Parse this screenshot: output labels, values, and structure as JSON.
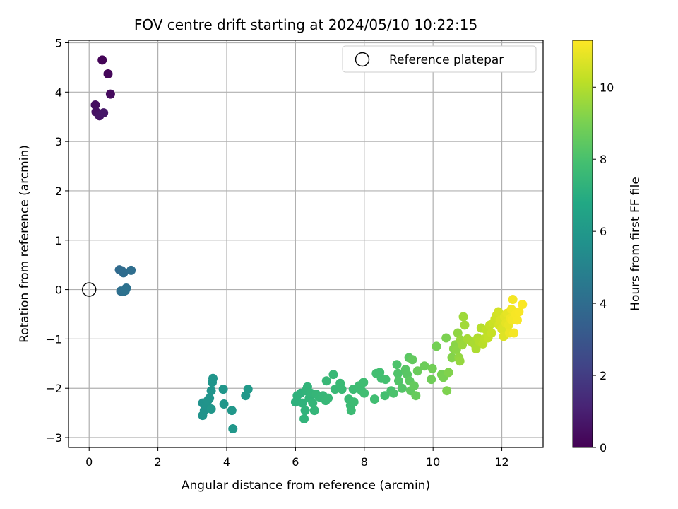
{
  "chart_data": {
    "type": "scatter",
    "title": "FOV centre drift starting at 2024/05/10 10:22:15",
    "xlabel": "Angular distance from reference (arcmin)",
    "ylabel": "Rotation from reference (arcmin)",
    "xlim": [
      -0.6,
      13.2
    ],
    "ylim": [
      -3.2,
      5.05
    ],
    "xticks": [
      0,
      2,
      4,
      6,
      8,
      10,
      12
    ],
    "yticks": [
      -3,
      -2,
      -1,
      0,
      1,
      2,
      3,
      4,
      5
    ],
    "xtick_labels": [
      "0",
      "2",
      "4",
      "6",
      "8",
      "10",
      "12"
    ],
    "ytick_labels": [
      "−3",
      "−2",
      "−1",
      "0",
      "1",
      "2",
      "3",
      "4",
      "5"
    ],
    "grid": true,
    "legend": {
      "position": "top-right",
      "entries": [
        "Reference platepar"
      ]
    },
    "reference_point": {
      "x": 0,
      "y": 0,
      "marker": "open-circle"
    },
    "colorbar": {
      "label": "Hours from first FF file",
      "colormap": "viridis",
      "range": [
        0,
        11.3
      ],
      "ticks": [
        0,
        2,
        4,
        6,
        8,
        10
      ],
      "tick_labels": [
        "0",
        "2",
        "4",
        "6",
        "8",
        "10"
      ]
    },
    "series": [
      {
        "points": [
          {
            "x": 0.38,
            "y": 4.65,
            "c": 0.1
          },
          {
            "x": 0.55,
            "y": 4.37,
            "c": 0.2
          },
          {
            "x": 0.62,
            "y": 3.96,
            "c": 0.3
          },
          {
            "x": 0.18,
            "y": 3.74,
            "c": 0.4
          },
          {
            "x": 0.2,
            "y": 3.6,
            "c": 0.5
          },
          {
            "x": 0.3,
            "y": 3.52,
            "c": 0.6
          },
          {
            "x": 0.42,
            "y": 3.58,
            "c": 0.7
          },
          {
            "x": 0.88,
            "y": 0.4,
            "c": 3.9
          },
          {
            "x": 0.95,
            "y": 0.38,
            "c": 3.95
          },
          {
            "x": 1.0,
            "y": 0.34,
            "c": 4.0
          },
          {
            "x": 1.22,
            "y": 0.39,
            "c": 4.05
          },
          {
            "x": 0.92,
            "y": -0.03,
            "c": 4.1
          },
          {
            "x": 1.0,
            "y": -0.04,
            "c": 4.15
          },
          {
            "x": 1.08,
            "y": 0.03,
            "c": 4.2
          },
          {
            "x": 1.05,
            "y": -0.02,
            "c": 4.25
          },
          {
            "x": 3.3,
            "y": -2.3,
            "c": 5.7
          },
          {
            "x": 3.35,
            "y": -2.45,
            "c": 5.72
          },
          {
            "x": 3.3,
            "y": -2.55,
            "c": 5.74
          },
          {
            "x": 3.4,
            "y": -2.35,
            "c": 5.76
          },
          {
            "x": 3.45,
            "y": -2.25,
            "c": 5.78
          },
          {
            "x": 3.5,
            "y": -2.2,
            "c": 5.8
          },
          {
            "x": 3.55,
            "y": -2.05,
            "c": 5.82
          },
          {
            "x": 3.58,
            "y": -1.88,
            "c": 5.84
          },
          {
            "x": 3.6,
            "y": -1.8,
            "c": 5.86
          },
          {
            "x": 3.55,
            "y": -2.42,
            "c": 5.88
          },
          {
            "x": 3.9,
            "y": -2.02,
            "c": 5.9
          },
          {
            "x": 3.92,
            "y": -2.32,
            "c": 5.92
          },
          {
            "x": 4.15,
            "y": -2.45,
            "c": 5.94
          },
          {
            "x": 4.18,
            "y": -2.82,
            "c": 5.96
          },
          {
            "x": 4.55,
            "y": -2.15,
            "c": 6.0
          },
          {
            "x": 4.62,
            "y": -2.02,
            "c": 6.05
          },
          {
            "x": 6.0,
            "y": -2.28,
            "c": 7.2
          },
          {
            "x": 6.05,
            "y": -2.15,
            "c": 7.22
          },
          {
            "x": 6.15,
            "y": -2.1,
            "c": 7.24
          },
          {
            "x": 6.2,
            "y": -2.3,
            "c": 7.26
          },
          {
            "x": 6.28,
            "y": -2.45,
            "c": 7.28
          },
          {
            "x": 6.25,
            "y": -2.62,
            "c": 7.3
          },
          {
            "x": 6.3,
            "y": -2.05,
            "c": 7.32
          },
          {
            "x": 6.35,
            "y": -1.97,
            "c": 7.34
          },
          {
            "x": 6.4,
            "y": -2.2,
            "c": 7.36
          },
          {
            "x": 6.45,
            "y": -2.1,
            "c": 7.38
          },
          {
            "x": 6.5,
            "y": -2.3,
            "c": 7.4
          },
          {
            "x": 6.55,
            "y": -2.45,
            "c": 7.42
          },
          {
            "x": 6.6,
            "y": -2.12,
            "c": 7.44
          },
          {
            "x": 6.7,
            "y": -2.18,
            "c": 7.46
          },
          {
            "x": 6.8,
            "y": -2.15,
            "c": 7.48
          },
          {
            "x": 6.88,
            "y": -2.25,
            "c": 7.5
          },
          {
            "x": 6.95,
            "y": -2.2,
            "c": 7.52
          },
          {
            "x": 6.9,
            "y": -1.85,
            "c": 7.54
          },
          {
            "x": 7.1,
            "y": -1.72,
            "c": 7.56
          },
          {
            "x": 7.15,
            "y": -2.02,
            "c": 7.58
          },
          {
            "x": 7.3,
            "y": -1.9,
            "c": 7.6
          },
          {
            "x": 7.35,
            "y": -2.02,
            "c": 7.62
          },
          {
            "x": 7.55,
            "y": -2.22,
            "c": 7.64
          },
          {
            "x": 7.6,
            "y": -2.35,
            "c": 7.66
          },
          {
            "x": 7.62,
            "y": -2.45,
            "c": 7.68
          },
          {
            "x": 7.68,
            "y": -2.02,
            "c": 7.7
          },
          {
            "x": 7.7,
            "y": -2.28,
            "c": 7.72
          },
          {
            "x": 7.85,
            "y": -1.95,
            "c": 7.74
          },
          {
            "x": 7.92,
            "y": -2.05,
            "c": 7.76
          },
          {
            "x": 7.98,
            "y": -1.88,
            "c": 7.78
          },
          {
            "x": 8.0,
            "y": -2.1,
            "c": 7.8
          },
          {
            "x": 8.3,
            "y": -2.22,
            "c": 7.82
          },
          {
            "x": 8.35,
            "y": -1.7,
            "c": 7.84
          },
          {
            "x": 8.45,
            "y": -1.68,
            "c": 7.86
          },
          {
            "x": 8.5,
            "y": -1.8,
            "c": 7.88
          },
          {
            "x": 8.6,
            "y": -2.15,
            "c": 7.9
          },
          {
            "x": 8.62,
            "y": -1.82,
            "c": 7.92
          },
          {
            "x": 8.78,
            "y": -2.05,
            "c": 8.0
          },
          {
            "x": 8.85,
            "y": -2.1,
            "c": 8.05
          },
          {
            "x": 8.95,
            "y": -1.52,
            "c": 8.1
          },
          {
            "x": 8.98,
            "y": -1.7,
            "c": 8.15
          },
          {
            "x": 9.0,
            "y": -1.85,
            "c": 8.2
          },
          {
            "x": 9.1,
            "y": -2.0,
            "c": 8.25
          },
          {
            "x": 9.2,
            "y": -1.62,
            "c": 8.3
          },
          {
            "x": 9.25,
            "y": -1.72,
            "c": 8.35
          },
          {
            "x": 9.3,
            "y": -1.38,
            "c": 8.4
          },
          {
            "x": 9.32,
            "y": -1.85,
            "c": 8.45
          },
          {
            "x": 9.35,
            "y": -2.05,
            "c": 8.5
          },
          {
            "x": 9.4,
            "y": -1.42,
            "c": 8.55
          },
          {
            "x": 9.45,
            "y": -1.95,
            "c": 8.6
          },
          {
            "x": 9.5,
            "y": -2.15,
            "c": 8.65
          },
          {
            "x": 9.55,
            "y": -1.65,
            "c": 8.7
          },
          {
            "x": 9.75,
            "y": -1.55,
            "c": 8.75
          },
          {
            "x": 9.95,
            "y": -1.82,
            "c": 8.8
          },
          {
            "x": 9.98,
            "y": -1.6,
            "c": 8.85
          },
          {
            "x": 10.1,
            "y": -1.15,
            "c": 8.9
          },
          {
            "x": 10.25,
            "y": -1.72,
            "c": 8.95
          },
          {
            "x": 10.3,
            "y": -1.78,
            "c": 9.0
          },
          {
            "x": 10.38,
            "y": -0.98,
            "c": 9.05
          },
          {
            "x": 10.4,
            "y": -2.05,
            "c": 9.1
          },
          {
            "x": 10.45,
            "y": -1.68,
            "c": 9.15
          },
          {
            "x": 10.55,
            "y": -1.38,
            "c": 9.2
          },
          {
            "x": 10.6,
            "y": -1.2,
            "c": 9.25
          },
          {
            "x": 10.65,
            "y": -1.12,
            "c": 9.3
          },
          {
            "x": 10.68,
            "y": -1.22,
            "c": 9.35
          },
          {
            "x": 10.72,
            "y": -0.88,
            "c": 9.4
          },
          {
            "x": 10.75,
            "y": -1.38,
            "c": 9.45
          },
          {
            "x": 10.78,
            "y": -1.45,
            "c": 9.5
          },
          {
            "x": 10.8,
            "y": -1.02,
            "c": 9.55
          },
          {
            "x": 10.85,
            "y": -1.12,
            "c": 9.6
          },
          {
            "x": 10.88,
            "y": -0.55,
            "c": 9.65
          },
          {
            "x": 10.92,
            "y": -0.72,
            "c": 9.7
          },
          {
            "x": 11.0,
            "y": -1.0,
            "c": 9.75
          },
          {
            "x": 11.1,
            "y": -1.05,
            "c": 9.8
          },
          {
            "x": 11.2,
            "y": -1.1,
            "c": 9.85
          },
          {
            "x": 11.25,
            "y": -1.2,
            "c": 9.9
          },
          {
            "x": 11.3,
            "y": -0.98,
            "c": 9.95
          },
          {
            "x": 11.35,
            "y": -1.05,
            "c": 10.0
          },
          {
            "x": 11.4,
            "y": -0.78,
            "c": 10.05
          },
          {
            "x": 11.45,
            "y": -1.1,
            "c": 10.1
          },
          {
            "x": 11.5,
            "y": -1.0,
            "c": 10.15
          },
          {
            "x": 11.55,
            "y": -0.82,
            "c": 10.2
          },
          {
            "x": 11.6,
            "y": -0.98,
            "c": 10.25
          },
          {
            "x": 11.65,
            "y": -0.72,
            "c": 10.3
          },
          {
            "x": 11.7,
            "y": -0.88,
            "c": 10.35
          },
          {
            "x": 11.75,
            "y": -0.68,
            "c": 10.4
          },
          {
            "x": 11.8,
            "y": -0.6,
            "c": 10.45
          },
          {
            "x": 11.85,
            "y": -0.52,
            "c": 10.5
          },
          {
            "x": 11.9,
            "y": -0.45,
            "c": 10.55
          },
          {
            "x": 11.92,
            "y": -0.72,
            "c": 10.6
          },
          {
            "x": 11.95,
            "y": -0.62,
            "c": 10.65
          },
          {
            "x": 12.0,
            "y": -0.8,
            "c": 10.7
          },
          {
            "x": 12.05,
            "y": -0.95,
            "c": 10.75
          },
          {
            "x": 12.08,
            "y": -0.55,
            "c": 10.8
          },
          {
            "x": 12.12,
            "y": -0.68,
            "c": 10.85
          },
          {
            "x": 12.15,
            "y": -0.48,
            "c": 10.9
          },
          {
            "x": 12.2,
            "y": -0.72,
            "c": 10.95
          },
          {
            "x": 12.22,
            "y": -0.88,
            "c": 11.0
          },
          {
            "x": 12.25,
            "y": -0.58,
            "c": 11.05
          },
          {
            "x": 12.28,
            "y": -0.4,
            "c": 11.1
          },
          {
            "x": 12.3,
            "y": -0.62,
            "c": 11.12
          },
          {
            "x": 12.32,
            "y": -0.2,
            "c": 11.14
          },
          {
            "x": 12.35,
            "y": -0.88,
            "c": 11.16
          },
          {
            "x": 12.4,
            "y": -0.5,
            "c": 11.18
          },
          {
            "x": 12.45,
            "y": -0.62,
            "c": 11.2
          },
          {
            "x": 12.5,
            "y": -0.45,
            "c": 11.22
          },
          {
            "x": 12.6,
            "y": -0.3,
            "c": 11.25
          }
        ]
      }
    ]
  }
}
